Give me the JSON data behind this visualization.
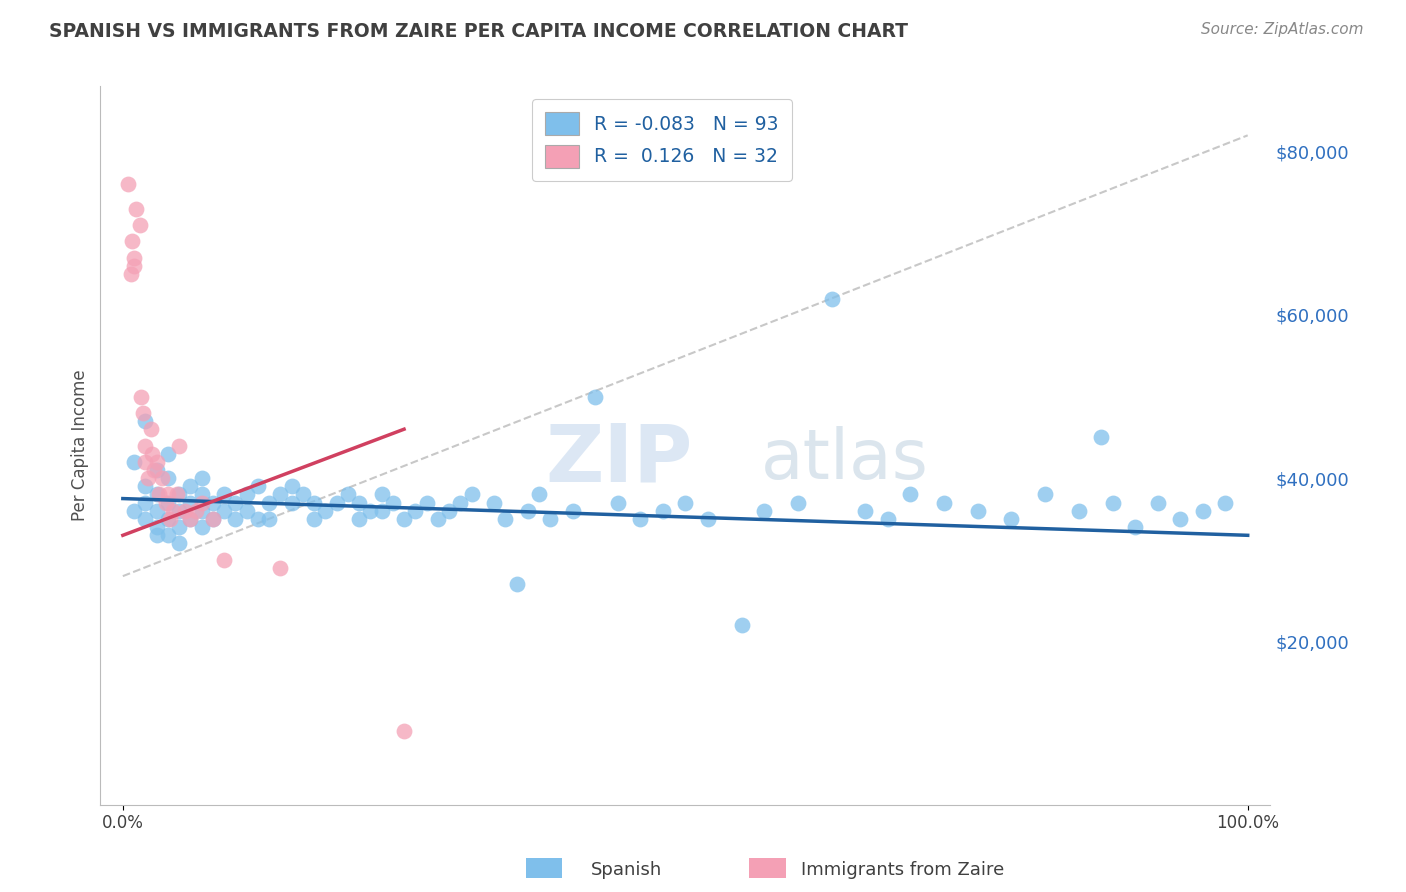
{
  "title": "SPANISH VS IMMIGRANTS FROM ZAIRE PER CAPITA INCOME CORRELATION CHART",
  "source_text": "Source: ZipAtlas.com",
  "ylabel": "Per Capita Income",
  "ytick_labels": [
    "$20,000",
    "$40,000",
    "$60,000",
    "$80,000"
  ],
  "ytick_values": [
    20000,
    40000,
    60000,
    80000
  ],
  "xtick_labels": [
    "0.0%",
    "100.0%"
  ],
  "ylim": [
    0,
    88000
  ],
  "xlim": [
    -0.02,
    1.02
  ],
  "title_color": "#404040",
  "source_color": "#888888",
  "blue_color": "#7fbfeb",
  "pink_color": "#f4a0b5",
  "line_blue_color": "#2060a0",
  "line_pink_color": "#d04060",
  "line_gray_color": "#c8c8c8",
  "legend_label1": "Spanish",
  "legend_label2": "Immigrants from Zaire",
  "blue_line_x": [
    0.0,
    1.0
  ],
  "blue_line_y": [
    37500,
    33000
  ],
  "pink_line_x": [
    0.0,
    0.25
  ],
  "pink_line_y": [
    33000,
    46000
  ],
  "gray_line_x": [
    0.0,
    1.0
  ],
  "gray_line_y": [
    28000,
    82000
  ],
  "spanish_x": [
    0.01,
    0.01,
    0.02,
    0.02,
    0.02,
    0.02,
    0.03,
    0.03,
    0.03,
    0.03,
    0.03,
    0.04,
    0.04,
    0.04,
    0.04,
    0.04,
    0.05,
    0.05,
    0.05,
    0.05,
    0.06,
    0.06,
    0.06,
    0.07,
    0.07,
    0.07,
    0.07,
    0.08,
    0.08,
    0.09,
    0.09,
    0.1,
    0.1,
    0.11,
    0.11,
    0.12,
    0.12,
    0.13,
    0.13,
    0.14,
    0.15,
    0.15,
    0.16,
    0.17,
    0.17,
    0.18,
    0.19,
    0.2,
    0.21,
    0.21,
    0.22,
    0.23,
    0.23,
    0.24,
    0.25,
    0.26,
    0.27,
    0.28,
    0.29,
    0.3,
    0.31,
    0.33,
    0.34,
    0.35,
    0.36,
    0.37,
    0.38,
    0.4,
    0.42,
    0.44,
    0.46,
    0.48,
    0.5,
    0.52,
    0.55,
    0.57,
    0.6,
    0.63,
    0.66,
    0.68,
    0.7,
    0.73,
    0.76,
    0.79,
    0.82,
    0.85,
    0.87,
    0.88,
    0.9,
    0.92,
    0.94,
    0.96,
    0.98
  ],
  "spanish_y": [
    42000,
    36000,
    47000,
    39000,
    37000,
    35000,
    41000,
    38000,
    36000,
    34000,
    33000,
    43000,
    40000,
    37000,
    35000,
    33000,
    38000,
    36000,
    34000,
    32000,
    39000,
    37000,
    35000,
    40000,
    38000,
    36000,
    34000,
    37000,
    35000,
    38000,
    36000,
    37000,
    35000,
    38000,
    36000,
    39000,
    35000,
    37000,
    35000,
    38000,
    39000,
    37000,
    38000,
    37000,
    35000,
    36000,
    37000,
    38000,
    37000,
    35000,
    36000,
    38000,
    36000,
    37000,
    35000,
    36000,
    37000,
    35000,
    36000,
    37000,
    38000,
    37000,
    35000,
    27000,
    36000,
    38000,
    35000,
    36000,
    50000,
    37000,
    35000,
    36000,
    37000,
    35000,
    22000,
    36000,
    37000,
    62000,
    36000,
    35000,
    38000,
    37000,
    36000,
    35000,
    38000,
    36000,
    45000,
    37000,
    34000,
    37000,
    35000,
    36000,
    37000
  ],
  "zaire_x": [
    0.005,
    0.007,
    0.008,
    0.01,
    0.01,
    0.012,
    0.015,
    0.016,
    0.018,
    0.02,
    0.02,
    0.022,
    0.025,
    0.026,
    0.028,
    0.03,
    0.032,
    0.035,
    0.038,
    0.04,
    0.042,
    0.045,
    0.048,
    0.05,
    0.055,
    0.06,
    0.065,
    0.07,
    0.08,
    0.09,
    0.14,
    0.25
  ],
  "zaire_y": [
    76000,
    65000,
    69000,
    67000,
    66000,
    73000,
    71000,
    50000,
    48000,
    44000,
    42000,
    40000,
    46000,
    43000,
    41000,
    42000,
    38000,
    40000,
    37000,
    38000,
    35000,
    36000,
    38000,
    44000,
    36000,
    35000,
    36000,
    37000,
    35000,
    30000,
    29000,
    9000
  ]
}
